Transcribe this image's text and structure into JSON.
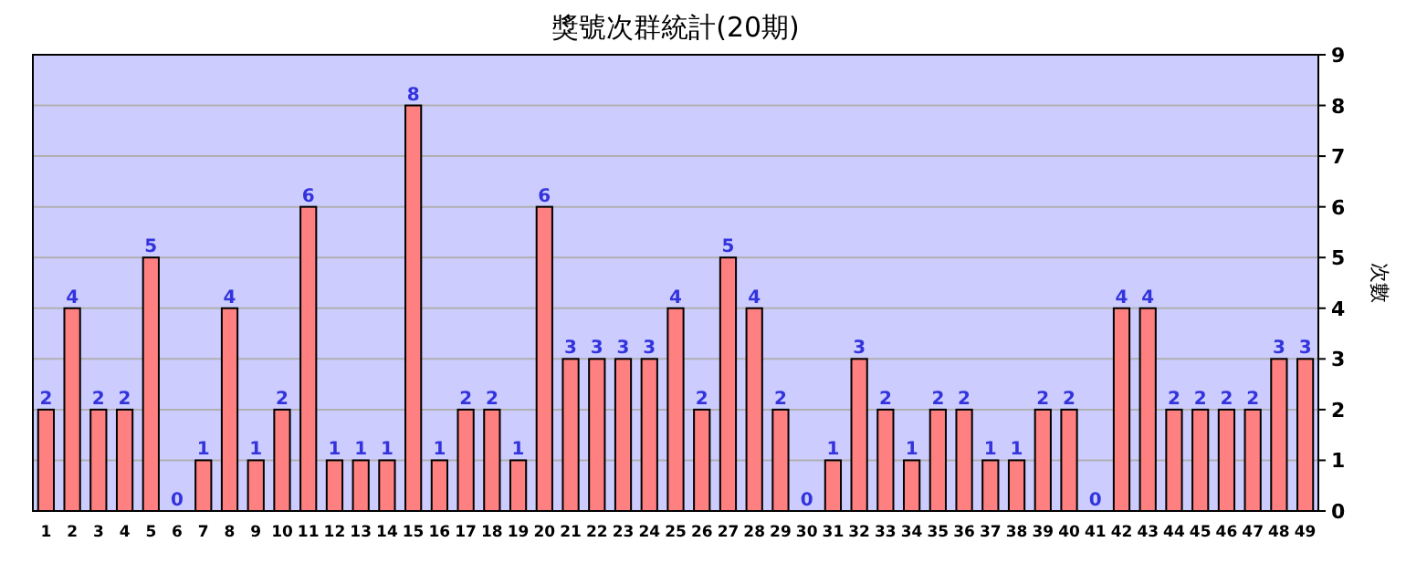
{
  "chart_data": {
    "type": "bar",
    "title": "獎號次群統計(20期)",
    "ylabel": "次數",
    "categories": [
      "1",
      "2",
      "3",
      "4",
      "5",
      "6",
      "7",
      "8",
      "9",
      "10",
      "11",
      "12",
      "13",
      "14",
      "15",
      "16",
      "17",
      "18",
      "19",
      "20",
      "21",
      "22",
      "23",
      "24",
      "25",
      "26",
      "27",
      "28",
      "29",
      "30",
      "31",
      "32",
      "33",
      "34",
      "35",
      "36",
      "37",
      "38",
      "39",
      "40",
      "41",
      "42",
      "43",
      "44",
      "45",
      "46",
      "47",
      "48",
      "49"
    ],
    "values": [
      2,
      4,
      2,
      2,
      5,
      0,
      1,
      4,
      1,
      2,
      6,
      1,
      1,
      1,
      8,
      1,
      2,
      2,
      1,
      6,
      3,
      3,
      3,
      3,
      4,
      2,
      5,
      4,
      2,
      0,
      1,
      3,
      2,
      1,
      2,
      2,
      1,
      1,
      2,
      2,
      0,
      4,
      4,
      2,
      2,
      2,
      2,
      3,
      3
    ],
    "color": "#ff8080",
    "ylim": [
      0,
      9
    ],
    "yticks": [
      0,
      1,
      2,
      3,
      4,
      5,
      6,
      7,
      8,
      9
    ],
    "grid": "y",
    "data_labels": true
  }
}
